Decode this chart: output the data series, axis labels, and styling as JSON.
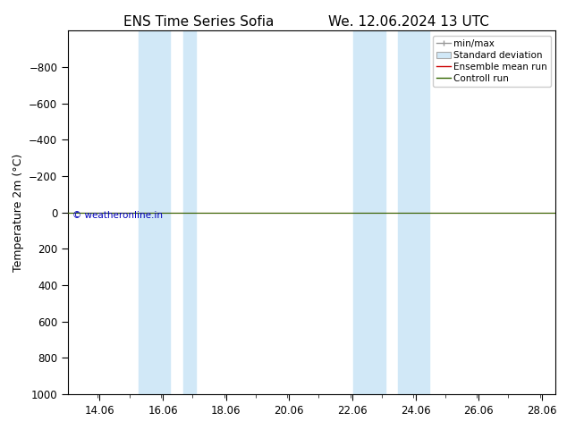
{
  "title_left": "ENS Time Series Sofia",
  "title_right": "We. 12.06.2024 13 UTC",
  "ylabel": "Temperature 2m (°C)",
  "ylim_top": -1000,
  "ylim_bottom": 1000,
  "yticks": [
    -800,
    -600,
    -400,
    -200,
    0,
    200,
    400,
    600,
    800,
    1000
  ],
  "xlim_start": 13.06,
  "xlim_end": 28.5,
  "xticks": [
    14.06,
    16.06,
    18.06,
    20.06,
    22.06,
    24.06,
    26.06,
    28.06
  ],
  "x_tick_labels": [
    "14.06",
    "16.06",
    "18.06",
    "20.06",
    "22.06",
    "24.06",
    "26.06",
    "28.06"
  ],
  "blue_bands": [
    {
      "xmin": 15.3,
      "xmax": 16.3
    },
    {
      "xmin": 16.7,
      "xmax": 17.1
    },
    {
      "xmin": 22.1,
      "xmax": 23.1
    },
    {
      "xmin": 23.5,
      "xmax": 24.5
    }
  ],
  "h_line_y": 0,
  "line_green_color": "#336600",
  "line_red_color": "#cc0000",
  "background_color": "#ffffff",
  "plot_bg_color": "#ffffff",
  "band_color_rgba": [
    0.82,
    0.91,
    0.97,
    1.0
  ],
  "copyright_text": "© weatheronline.in",
  "copyright_color": "#0000bb",
  "legend_labels": [
    "min/max",
    "Standard deviation",
    "Ensemble mean run",
    "Controll run"
  ],
  "title_fontsize": 11,
  "axis_fontsize": 9,
  "tick_fontsize": 8.5
}
